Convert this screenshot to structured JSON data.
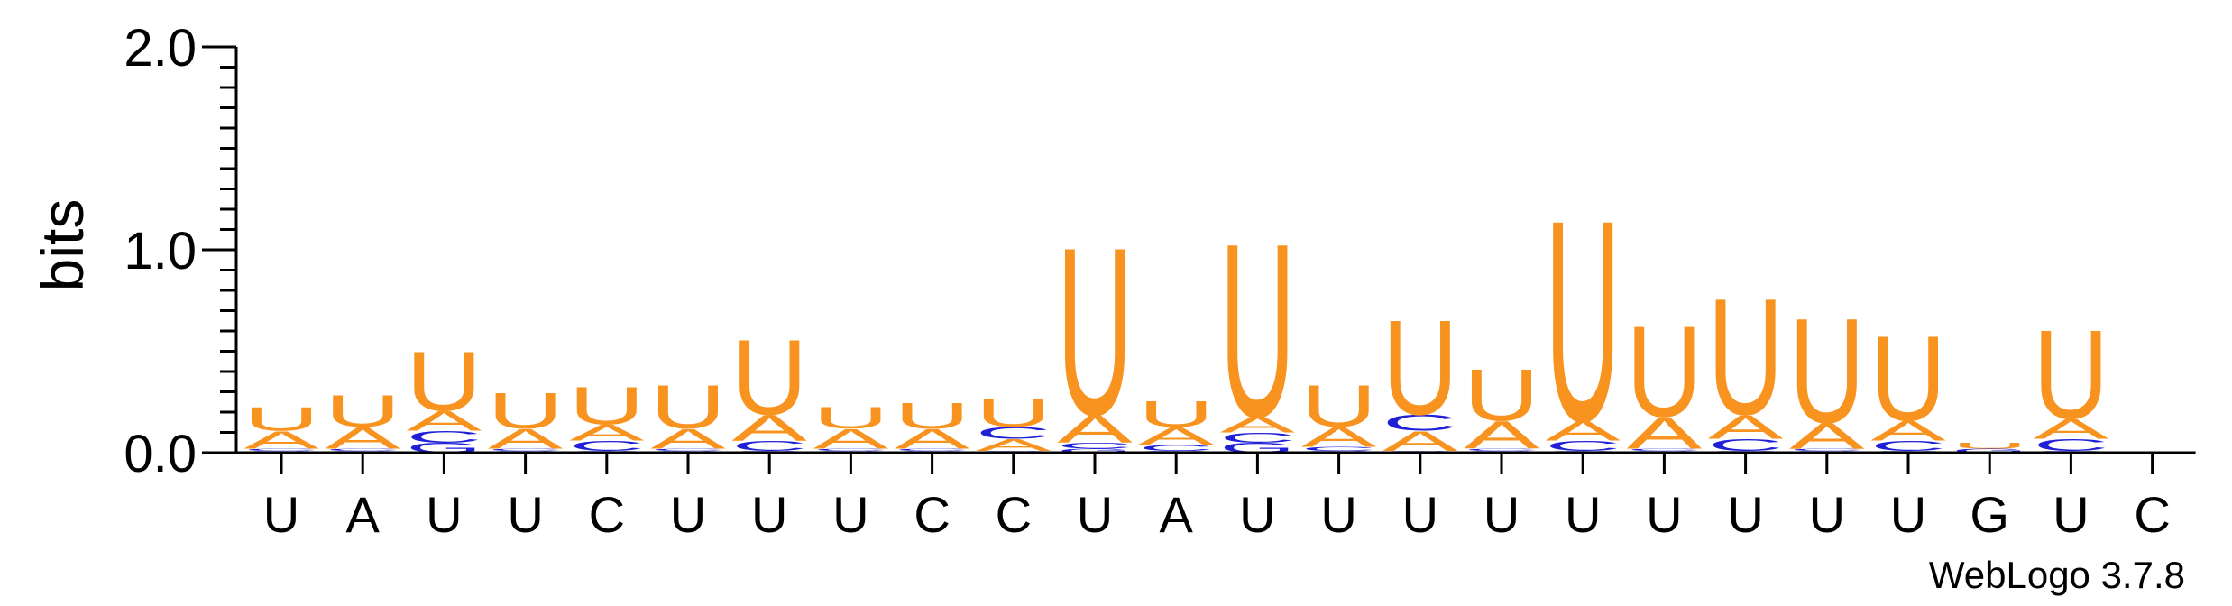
{
  "chart_data": {
    "type": "sequence-logo",
    "ylabel": "bits",
    "ylim": [
      0,
      2.0
    ],
    "y_ticks": [
      0.0,
      1.0,
      2.0
    ],
    "y_tick_labels": [
      "0.0",
      "1.0",
      "2.0"
    ],
    "x_tick_labels": [
      "U",
      "A",
      "U",
      "U",
      "C",
      "U",
      "U",
      "U",
      "C",
      "C",
      "U",
      "A",
      "U",
      "U",
      "U",
      "U",
      "U",
      "U",
      "U",
      "U",
      "U",
      "G",
      "U",
      "C"
    ],
    "credit": "WebLogo 3.7.8",
    "colors": {
      "U": "#f7931e",
      "A": "#f7931e",
      "C": "#1f1fd8",
      "G": "#1f1fd8"
    },
    "positions": [
      {
        "letters": [
          {
            "l": "G",
            "h": 0.01
          },
          {
            "l": "C",
            "h": 0.01
          },
          {
            "l": "A",
            "h": 0.09
          },
          {
            "l": "U",
            "h": 0.12
          }
        ]
      },
      {
        "letters": [
          {
            "l": "G",
            "h": 0.01
          },
          {
            "l": "C",
            "h": 0.01
          },
          {
            "l": "A",
            "h": 0.11
          },
          {
            "l": "U",
            "h": 0.16
          }
        ]
      },
      {
        "letters": [
          {
            "l": "G",
            "h": 0.05
          },
          {
            "l": "C",
            "h": 0.06
          },
          {
            "l": "A",
            "h": 0.1
          },
          {
            "l": "U",
            "h": 0.3
          }
        ]
      },
      {
        "letters": [
          {
            "l": "G",
            "h": 0.01
          },
          {
            "l": "C",
            "h": 0.01
          },
          {
            "l": "A",
            "h": 0.1
          },
          {
            "l": "U",
            "h": 0.18
          }
        ]
      },
      {
        "letters": [
          {
            "l": "G",
            "h": 0.01
          },
          {
            "l": "C",
            "h": 0.05
          },
          {
            "l": "A",
            "h": 0.08
          },
          {
            "l": "U",
            "h": 0.19
          }
        ]
      },
      {
        "letters": [
          {
            "l": "G",
            "h": 0.01
          },
          {
            "l": "C",
            "h": 0.01
          },
          {
            "l": "A",
            "h": 0.1
          },
          {
            "l": "U",
            "h": 0.22
          }
        ]
      },
      {
        "letters": [
          {
            "l": "G",
            "h": 0.01
          },
          {
            "l": "C",
            "h": 0.05
          },
          {
            "l": "A",
            "h": 0.13
          },
          {
            "l": "U",
            "h": 0.38
          }
        ]
      },
      {
        "letters": [
          {
            "l": "G",
            "h": 0.01
          },
          {
            "l": "C",
            "h": 0.01
          },
          {
            "l": "A",
            "h": 0.1
          },
          {
            "l": "U",
            "h": 0.11
          }
        ]
      },
      {
        "letters": [
          {
            "l": "G",
            "h": 0.01
          },
          {
            "l": "C",
            "h": 0.01
          },
          {
            "l": "A",
            "h": 0.1
          },
          {
            "l": "U",
            "h": 0.13
          }
        ]
      },
      {
        "letters": [
          {
            "l": "G",
            "h": 0.01
          },
          {
            "l": "A",
            "h": 0.06
          },
          {
            "l": "C",
            "h": 0.06
          },
          {
            "l": "U",
            "h": 0.14
          }
        ]
      },
      {
        "letters": [
          {
            "l": "G",
            "h": 0.02
          },
          {
            "l": "C",
            "h": 0.03
          },
          {
            "l": "A",
            "h": 0.14
          },
          {
            "l": "U",
            "h": 0.85
          }
        ]
      },
      {
        "letters": [
          {
            "l": "G",
            "h": 0.01
          },
          {
            "l": "C",
            "h": 0.03
          },
          {
            "l": "A",
            "h": 0.09
          },
          {
            "l": "U",
            "h": 0.13
          }
        ]
      },
      {
        "letters": [
          {
            "l": "G",
            "h": 0.05
          },
          {
            "l": "C",
            "h": 0.05
          },
          {
            "l": "A",
            "h": 0.08
          },
          {
            "l": "U",
            "h": 0.88
          }
        ]
      },
      {
        "letters": [
          {
            "l": "G",
            "h": 0.01
          },
          {
            "l": "C",
            "h": 0.02
          },
          {
            "l": "A",
            "h": 0.1
          },
          {
            "l": "U",
            "h": 0.21
          }
        ]
      },
      {
        "letters": [
          {
            "l": "G",
            "h": 0.01
          },
          {
            "l": "A",
            "h": 0.1
          },
          {
            "l": "C",
            "h": 0.08
          },
          {
            "l": "U",
            "h": 0.48
          }
        ]
      },
      {
        "letters": [
          {
            "l": "G",
            "h": 0.01
          },
          {
            "l": "C",
            "h": 0.01
          },
          {
            "l": "A",
            "h": 0.14
          },
          {
            "l": "U",
            "h": 0.26
          }
        ]
      },
      {
        "letters": [
          {
            "l": "G",
            "h": 0.01
          },
          {
            "l": "C",
            "h": 0.05
          },
          {
            "l": "A",
            "h": 0.1
          },
          {
            "l": "U",
            "h": 1.02
          }
        ]
      },
      {
        "letters": [
          {
            "l": "G",
            "h": 0.01
          },
          {
            "l": "C",
            "h": 0.01
          },
          {
            "l": "A",
            "h": 0.16
          },
          {
            "l": "U",
            "h": 0.46
          }
        ]
      },
      {
        "letters": [
          {
            "l": "G",
            "h": 0.01
          },
          {
            "l": "C",
            "h": 0.06
          },
          {
            "l": "A",
            "h": 0.12
          },
          {
            "l": "U",
            "h": 0.59
          }
        ]
      },
      {
        "letters": [
          {
            "l": "G",
            "h": 0.01
          },
          {
            "l": "C",
            "h": 0.01
          },
          {
            "l": "A",
            "h": 0.13
          },
          {
            "l": "U",
            "h": 0.53
          }
        ]
      },
      {
        "letters": [
          {
            "l": "G",
            "h": 0.01
          },
          {
            "l": "C",
            "h": 0.05
          },
          {
            "l": "A",
            "h": 0.1
          },
          {
            "l": "U",
            "h": 0.43
          }
        ]
      },
      {
        "letters": [
          {
            "l": "G",
            "h": 0.02
          },
          {
            "l": "U",
            "h": 0.03
          }
        ]
      },
      {
        "letters": [
          {
            "l": "G",
            "h": 0.01
          },
          {
            "l": "C",
            "h": 0.06
          },
          {
            "l": "A",
            "h": 0.1
          },
          {
            "l": "U",
            "h": 0.45
          }
        ]
      },
      {
        "letters": []
      }
    ]
  }
}
